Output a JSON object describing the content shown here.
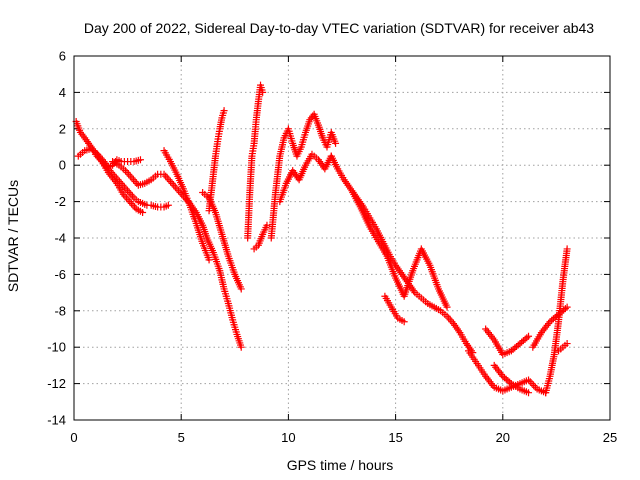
{
  "chart_data": {
    "type": "scatter",
    "title": "Day 200 of 2022, Sidereal Day-to-day VTEC variation (SDTVAR) for receiver ab43",
    "xlabel": "GPS time / hours",
    "ylabel": "SDTVAR / TECUs",
    "xlim": [
      0,
      25
    ],
    "ylim": [
      -14,
      6
    ],
    "xticks": [
      "0",
      "5",
      "10",
      "15",
      "20",
      "25"
    ],
    "yticks": [
      "-14",
      "-12",
      "-10",
      "-8",
      "-6",
      "-4",
      "-2",
      "0",
      "2",
      "4",
      "6"
    ],
    "grid": true,
    "marker": "+",
    "color": "#ff0000",
    "series": [
      {
        "name": "arc1",
        "x": [
          0.1,
          0.3,
          0.5,
          0.8,
          1.0,
          1.3,
          1.6,
          1.9,
          2.2,
          2.5,
          2.8,
          3.0,
          3.2,
          3.4,
          3.6,
          3.9,
          4.2,
          4.4
        ],
        "y": [
          2.4,
          1.8,
          1.5,
          1.0,
          0.7,
          0.2,
          -0.2,
          -0.6,
          -1.0,
          -1.4,
          -1.8,
          -2.0,
          -2.1,
          -2.2,
          -2.2,
          -2.3,
          -2.3,
          -2.2
        ]
      },
      {
        "name": "arc2",
        "x": [
          0.2,
          0.5,
          0.8,
          1.1,
          1.4,
          1.6,
          1.8,
          2.0,
          2.2,
          2.5,
          2.8,
          3.1
        ],
        "y": [
          0.5,
          0.8,
          0.9,
          0.6,
          0.2,
          -0.1,
          0.0,
          0.3,
          0.2,
          0.2,
          0.2,
          0.3
        ]
      },
      {
        "name": "arc3",
        "x": [
          1.0,
          1.3,
          1.6,
          2.0,
          2.3,
          2.6,
          2.9,
          3.2
        ],
        "y": [
          0.6,
          0.2,
          -0.4,
          -1.0,
          -1.6,
          -2.0,
          -2.4,
          -2.6
        ]
      },
      {
        "name": "arc4",
        "x": [
          1.8,
          2.1,
          2.4,
          2.7,
          3.0,
          3.3,
          3.6,
          3.9,
          4.2,
          4.5,
          4.8,
          5.1,
          5.4,
          5.7,
          6.0,
          6.2,
          6.5,
          6.8,
          7.0,
          7.2,
          7.4,
          7.6,
          7.8
        ],
        "y": [
          0.2,
          0.0,
          -0.3,
          -0.7,
          -1.1,
          -1.0,
          -0.8,
          -0.5,
          -0.5,
          -0.9,
          -1.3,
          -1.7,
          -2.1,
          -2.6,
          -3.3,
          -4.0,
          -4.8,
          -5.8,
          -6.8,
          -7.6,
          -8.5,
          -9.3,
          -10.0
        ]
      },
      {
        "name": "arc5",
        "x": [
          4.2,
          4.5,
          4.8,
          5.1,
          5.4,
          5.7,
          6.0,
          6.3
        ],
        "y": [
          0.8,
          0.2,
          -0.5,
          -1.3,
          -2.2,
          -3.2,
          -4.3,
          -5.2
        ]
      },
      {
        "name": "arc6",
        "x": [
          6.3,
          6.4,
          6.5,
          6.6,
          6.7,
          6.8,
          6.9,
          7.0
        ],
        "y": [
          -2.5,
          -1.5,
          -0.5,
          0.5,
          1.3,
          2.0,
          2.6,
          3.0
        ]
      },
      {
        "name": "arc7",
        "x": [
          6.0,
          6.3,
          6.6,
          6.9,
          7.2,
          7.5,
          7.8
        ],
        "y": [
          -1.5,
          -1.8,
          -2.6,
          -3.8,
          -5.0,
          -6.0,
          -6.8
        ]
      },
      {
        "name": "arc8",
        "x": [
          8.1,
          8.2,
          8.3,
          8.4,
          8.5,
          8.6,
          8.7,
          8.8
        ],
        "y": [
          -4.0,
          -1.5,
          0.5,
          1.2,
          2.5,
          3.5,
          4.4,
          4.0
        ]
      },
      {
        "name": "arc9",
        "x": [
          8.4,
          8.6,
          8.8,
          9.0
        ],
        "y": [
          -4.6,
          -4.4,
          -3.8,
          -3.3
        ]
      },
      {
        "name": "arc10",
        "x": [
          9.2,
          9.4,
          9.6,
          9.8,
          10.0,
          10.2,
          10.4,
          10.6,
          10.8,
          11.0,
          11.2,
          11.4,
          11.6,
          11.8,
          12.0,
          12.2
        ],
        "y": [
          -4.0,
          -1.5,
          0.5,
          1.5,
          2.0,
          1.2,
          0.5,
          1.0,
          1.8,
          2.5,
          2.8,
          2.2,
          1.5,
          1.0,
          1.8,
          1.2
        ]
      },
      {
        "name": "arc11",
        "x": [
          9.6,
          9.9,
          10.2,
          10.5,
          10.8,
          11.1,
          11.4,
          11.7,
          12.0
        ],
        "y": [
          -2.0,
          -1.0,
          -0.3,
          -0.8,
          0.0,
          0.6,
          0.3,
          -0.2,
          0.5
        ]
      },
      {
        "name": "arc12",
        "x": [
          12.0,
          12.3,
          12.6,
          12.9,
          13.2,
          13.5,
          13.8,
          14.1,
          14.4,
          14.7,
          15.0,
          15.3,
          15.6,
          15.9,
          16.2,
          16.5,
          16.8,
          17.1,
          17.4,
          17.7,
          18.0,
          18.3,
          18.6
        ],
        "y": [
          0.5,
          -0.2,
          -0.8,
          -1.3,
          -1.8,
          -2.3,
          -2.9,
          -3.5,
          -4.2,
          -4.9,
          -5.5,
          -6.0,
          -6.5,
          -7.0,
          -7.3,
          -7.6,
          -7.8,
          -8.0,
          -8.3,
          -8.7,
          -9.2,
          -9.8,
          -10.3
        ]
      },
      {
        "name": "arc13",
        "x": [
          13.0,
          13.4,
          13.8,
          14.2,
          14.6,
          15.0,
          15.4,
          15.8,
          16.2,
          16.6,
          17.0,
          17.4
        ],
        "y": [
          -1.5,
          -2.4,
          -3.4,
          -4.2,
          -5.0,
          -6.2,
          -7.2,
          -5.8,
          -4.6,
          -5.5,
          -6.8,
          -7.8
        ]
      },
      {
        "name": "arc14",
        "x": [
          14.5,
          14.8,
          15.1,
          15.4
        ],
        "y": [
          -7.2,
          -7.8,
          -8.4,
          -8.6
        ]
      },
      {
        "name": "arc15",
        "x": [
          18.4,
          18.8,
          19.2,
          19.6,
          20.0,
          20.4,
          20.8,
          21.2,
          21.6,
          22.0
        ],
        "y": [
          -10.2,
          -10.9,
          -11.6,
          -12.2,
          -12.4,
          -12.2,
          -12.0,
          -11.8,
          -12.3,
          -12.5
        ]
      },
      {
        "name": "arc16",
        "x": [
          19.2,
          19.6,
          20.0,
          20.4,
          20.8,
          21.2
        ],
        "y": [
          -9.0,
          -9.6,
          -10.4,
          -10.2,
          -9.8,
          -9.4
        ]
      },
      {
        "name": "arc17",
        "x": [
          19.6,
          20.0,
          20.4,
          20.8,
          21.2
        ],
        "y": [
          -11.0,
          -11.6,
          -12.0,
          -12.3,
          -12.5
        ]
      },
      {
        "name": "arc18",
        "x": [
          21.4,
          21.8,
          22.2,
          22.6,
          23.0
        ],
        "y": [
          -10.0,
          -9.2,
          -8.6,
          -8.2,
          -7.8
        ]
      },
      {
        "name": "arc19",
        "x": [
          22.0,
          22.2,
          22.4,
          22.6,
          22.8,
          23.0
        ],
        "y": [
          -12.5,
          -11.6,
          -10.4,
          -8.6,
          -6.4,
          -4.6
        ]
      },
      {
        "name": "arc20",
        "x": [
          22.6,
          22.8,
          23.0
        ],
        "y": [
          -10.2,
          -10.0,
          -9.8
        ]
      }
    ]
  }
}
